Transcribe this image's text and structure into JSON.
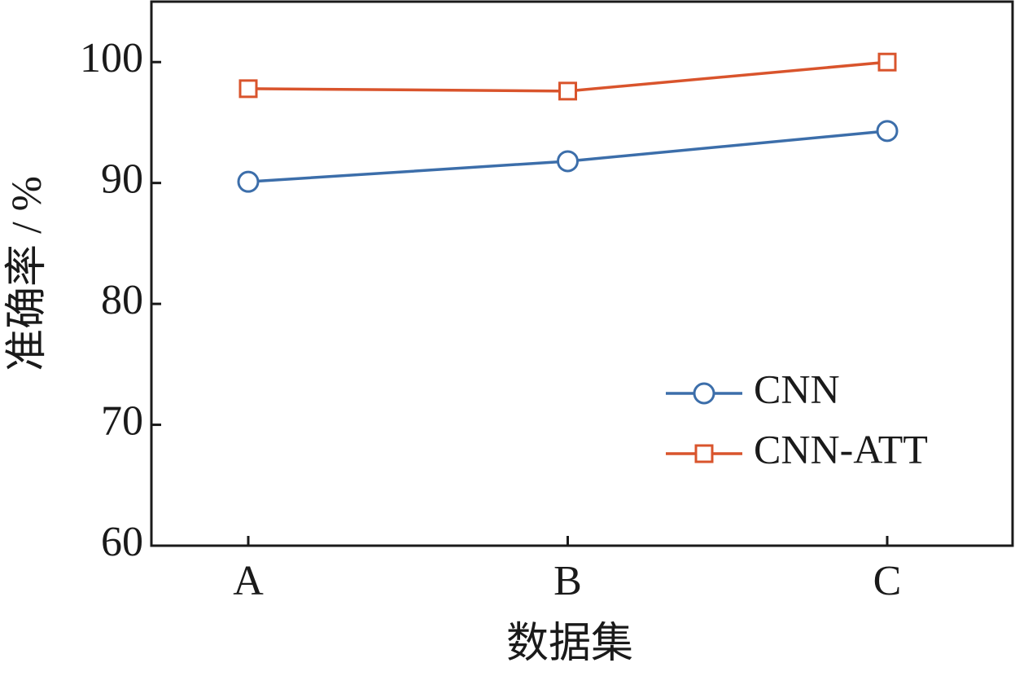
{
  "chart_data": {
    "type": "line",
    "x_label": "数据集",
    "y_label": "准确率 / %",
    "categories": [
      "A",
      "B",
      "C"
    ],
    "series": [
      {
        "name": "CNN",
        "color": "#3c6eaa",
        "marker": "circle",
        "values": [
          90.1,
          91.8,
          94.3
        ]
      },
      {
        "name": "CNN-ATT",
        "color": "#d9542c",
        "marker": "square",
        "values": [
          97.8,
          97.6,
          100
        ]
      }
    ],
    "ylim": [
      60,
      105
    ],
    "yticks": [
      60,
      70,
      80,
      90,
      100
    ],
    "legend": "lower right"
  }
}
